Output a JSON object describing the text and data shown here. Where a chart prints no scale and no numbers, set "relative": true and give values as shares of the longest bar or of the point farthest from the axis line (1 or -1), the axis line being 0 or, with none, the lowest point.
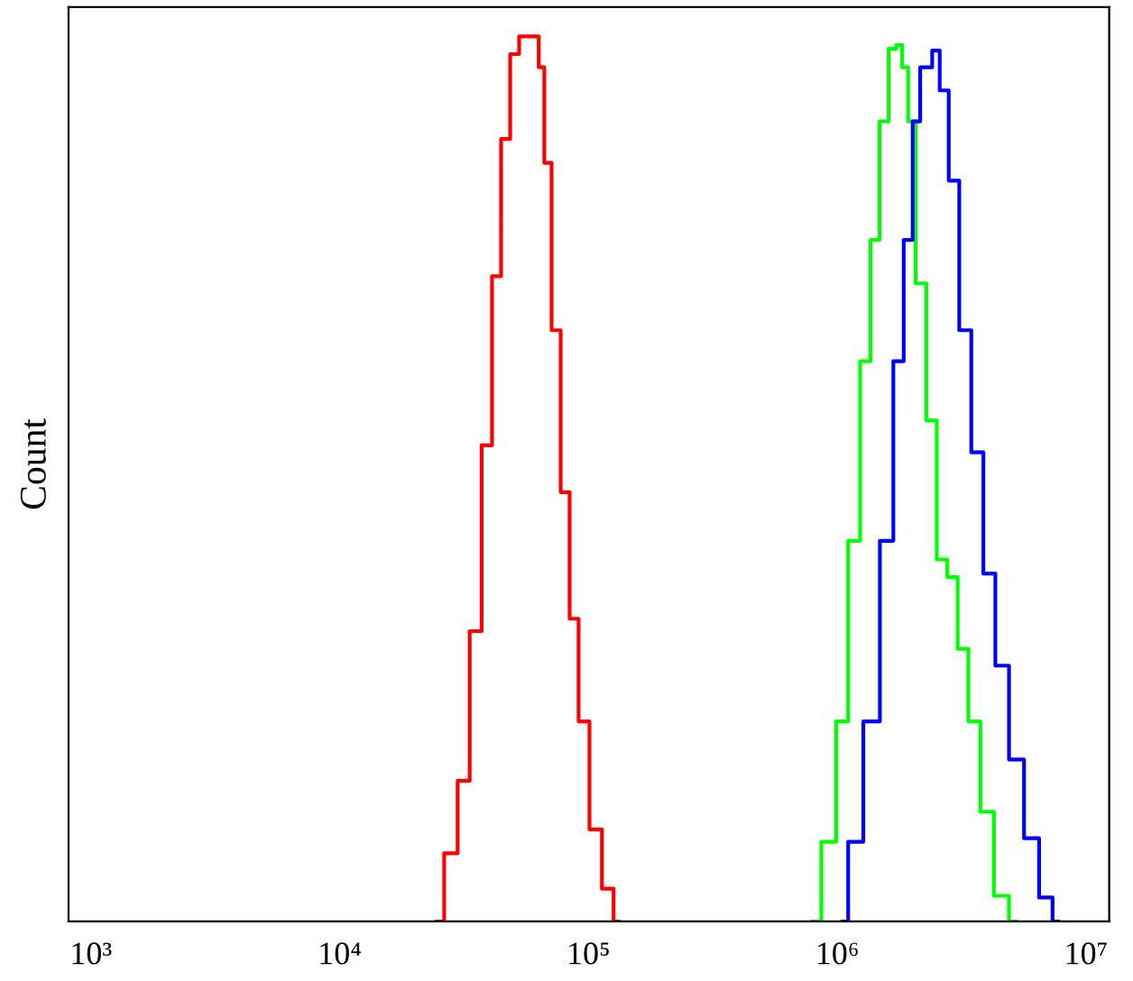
{
  "chart_data": {
    "type": "step",
    "ylabel": "Count",
    "relative": true,
    "log": "x",
    "xlim": [
      813,
      12400000
    ],
    "xticks": [
      {
        "value": 1000,
        "label": "10³"
      },
      {
        "value": 10000,
        "label": "10⁴"
      },
      {
        "value": 100000,
        "label": "10⁵"
      },
      {
        "value": 1000000,
        "label": "10⁶"
      },
      {
        "value": 10000000,
        "label": "10⁷"
      }
    ],
    "grid": false,
    "legend": false,
    "marker": "none",
    "line_style": "solid",
    "series": [
      {
        "color": "#ff0000",
        "x": [
          24490,
          28120,
          31480,
          35160,
          39260,
          42660,
          46450,
          50470,
          54830,
          61380,
          64860,
          68080,
          74130,
          80540,
          87500,
          95060,
          106900,
          119700,
          132700
        ],
        "values": [
          0,
          0.077,
          0.159,
          0.328,
          0.538,
          0.729,
          0.884,
          0.98,
          1.0,
          1.0,
          0.965,
          0.857,
          0.668,
          0.485,
          0.342,
          0.226,
          0.104,
          0.037,
          0
        ]
      },
      {
        "color": "#00ff00",
        "x": [
          792000,
          935000,
          1047000,
          1167000,
          1305000,
          1419000,
          1542000,
          1679000,
          1774000,
          1876000,
          1982000,
          2153000,
          2409000,
          2618000,
          2924000,
          3177000,
          3556000,
          3972000,
          4562000,
          5248000
        ],
        "values": [
          0,
          0.09,
          0.226,
          0.43,
          0.633,
          0.77,
          0.904,
          0.986,
          0.99,
          0.965,
          0.904,
          0.721,
          0.566,
          0.409,
          0.389,
          0.308,
          0.226,
          0.124,
          0.029,
          0
        ]
      },
      {
        "color": "#0000ff",
        "x": [
          1047000,
          1167000,
          1380000,
          1589000,
          1774000,
          1928000,
          2094000,
          2218000,
          2344000,
          2474000,
          2692000,
          2924000,
          3266000,
          3655000,
          4083000,
          4562000,
          5248000,
          6026000,
          6934000,
          7745000
        ],
        "values": [
          0,
          0.09,
          0.226,
          0.43,
          0.633,
          0.77,
          0.904,
          0.965,
          0.965,
          0.984,
          0.939,
          0.837,
          0.668,
          0.53,
          0.393,
          0.289,
          0.183,
          0.094,
          0.027,
          0
        ]
      }
    ]
  }
}
